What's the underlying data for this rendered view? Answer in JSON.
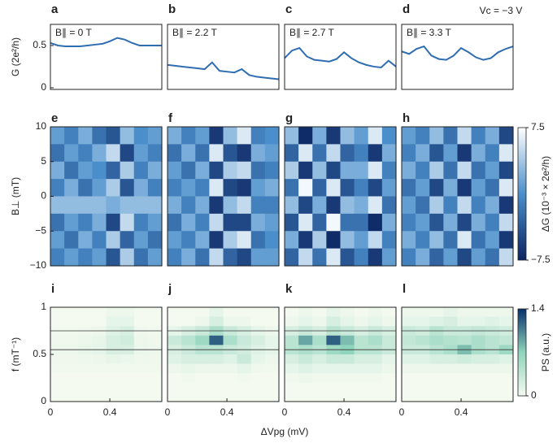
{
  "figure": {
    "x_label": "ΔVpg (mV)",
    "annotation": "Vc = −3 V"
  },
  "chart_data": [
    {
      "type": "line",
      "panel_label": "a",
      "annotation": "B∥ = 0 T",
      "y_label": "G (2e²/h)",
      "color": "#2f6db3",
      "x": [
        0,
        0.05,
        0.1,
        0.15,
        0.2,
        0.25,
        0.3,
        0.35,
        0.4,
        0.45,
        0.5,
        0.55,
        0.6,
        0.65,
        0.7,
        0.75
      ],
      "values": [
        0.53,
        0.5,
        0.49,
        0.49,
        0.49,
        0.5,
        0.51,
        0.52,
        0.55,
        0.59,
        0.57,
        0.53,
        0.5,
        0.5,
        0.5,
        0.5
      ],
      "xlim": [
        0,
        0.75
      ],
      "ylim": [
        -0.02,
        0.75
      ],
      "yticks": [
        0,
        0.5
      ]
    },
    {
      "type": "line",
      "panel_label": "b",
      "annotation": "B∥ = 2.2 T",
      "color": "#2f6db3",
      "x": [
        0,
        0.05,
        0.1,
        0.15,
        0.2,
        0.25,
        0.3,
        0.35,
        0.4,
        0.45,
        0.5,
        0.55,
        0.6,
        0.65,
        0.7,
        0.75
      ],
      "values": [
        0.27,
        0.26,
        0.25,
        0.24,
        0.23,
        0.22,
        0.3,
        0.2,
        0.19,
        0.18,
        0.22,
        0.15,
        0.13,
        0.12,
        0.11,
        0.1
      ],
      "xlim": [
        0,
        0.75
      ],
      "ylim": [
        -0.02,
        0.75
      ]
    },
    {
      "type": "line",
      "panel_label": "c",
      "annotation": "B∥ = 2.7 T",
      "color": "#2f6db3",
      "x": [
        0,
        0.05,
        0.1,
        0.15,
        0.2,
        0.25,
        0.3,
        0.35,
        0.4,
        0.45,
        0.5,
        0.55,
        0.6,
        0.65,
        0.7,
        0.75
      ],
      "values": [
        0.35,
        0.44,
        0.47,
        0.37,
        0.33,
        0.32,
        0.31,
        0.34,
        0.42,
        0.35,
        0.3,
        0.27,
        0.25,
        0.24,
        0.32,
        0.25
      ],
      "xlim": [
        0,
        0.75
      ],
      "ylim": [
        -0.02,
        0.75
      ]
    },
    {
      "type": "line",
      "panel_label": "d",
      "annotation": "B∥ = 3.3 T",
      "color": "#2f6db3",
      "x": [
        0,
        0.05,
        0.1,
        0.15,
        0.2,
        0.25,
        0.3,
        0.35,
        0.4,
        0.45,
        0.5,
        0.55,
        0.6,
        0.65,
        0.7,
        0.75
      ],
      "values": [
        0.43,
        0.4,
        0.46,
        0.49,
        0.38,
        0.34,
        0.33,
        0.38,
        0.47,
        0.42,
        0.36,
        0.33,
        0.35,
        0.42,
        0.46,
        0.49
      ],
      "xlim": [
        0,
        0.75
      ],
      "ylim": [
        -0.02,
        0.75
      ]
    },
    {
      "type": "heatmap",
      "panel_label": "e",
      "y_label": "B⊥ (mT)",
      "xlim": [
        0,
        0.75
      ],
      "ylim": [
        -10,
        10
      ],
      "yticks": [
        10,
        5,
        0,
        {
          "value": -5,
          "label": "−5"
        },
        {
          "value": -10,
          "label": "−10"
        }
      ],
      "z": [
        [
          1,
          -1,
          2,
          -2,
          -4,
          3,
          0,
          1
        ],
        [
          -2,
          1,
          -1,
          2,
          5,
          -5,
          1,
          -1
        ],
        [
          2,
          -2,
          1,
          0,
          -3,
          4,
          -1,
          2
        ],
        [
          -1,
          2,
          -2,
          1,
          4,
          -4,
          2,
          -1
        ],
        [
          3,
          3,
          3,
          3,
          2,
          3,
          3,
          3
        ],
        [
          -2,
          1,
          -1,
          2,
          -5,
          5,
          -1,
          1
        ],
        [
          1,
          -2,
          2,
          -1,
          4,
          -3,
          1,
          -2
        ],
        [
          -1,
          1,
          -1,
          1,
          -4,
          4,
          -2,
          1
        ]
      ]
    },
    {
      "type": "heatmap",
      "panel_label": "f",
      "xlim": [
        0,
        0.75
      ],
      "ylim": [
        -10,
        10
      ],
      "z": [
        [
          2,
          -1,
          1,
          -6,
          3,
          6,
          -1,
          0
        ],
        [
          -2,
          2,
          -2,
          6,
          -4,
          -6,
          2,
          1
        ],
        [
          1,
          -2,
          2,
          -5,
          4,
          5,
          -2,
          -1
        ],
        [
          -1,
          1,
          -1,
          6,
          -5,
          -6,
          1,
          2
        ],
        [
          2,
          -1,
          2,
          -6,
          3,
          5,
          -1,
          -1
        ],
        [
          -2,
          2,
          -1,
          5,
          -5,
          -5,
          2,
          1
        ],
        [
          1,
          -1,
          2,
          -6,
          4,
          6,
          -2,
          0
        ],
        [
          -1,
          2,
          -2,
          5,
          -3,
          -5,
          1,
          1
        ]
      ]
    },
    {
      "type": "heatmap",
      "panel_label": "g",
      "xlim": [
        0,
        0.75
      ],
      "ylim": [
        -10,
        10
      ],
      "z": [
        [
          3,
          -7,
          2,
          -6,
          3,
          1,
          6,
          0
        ],
        [
          -3,
          6,
          -2,
          5,
          -3,
          -1,
          -6,
          2
        ],
        [
          4,
          -6,
          3,
          -5,
          2,
          2,
          6,
          -1
        ],
        [
          -2,
          7,
          -3,
          6,
          -4,
          -1,
          -5,
          1
        ],
        [
          3,
          -5,
          2,
          -6,
          3,
          2,
          6,
          -2
        ],
        [
          -4,
          6,
          -3,
          7,
          -2,
          -2,
          -7,
          2
        ],
        [
          2,
          -6,
          4,
          -7,
          3,
          1,
          5,
          -1
        ],
        [
          -3,
          5,
          -2,
          6,
          -4,
          -1,
          -6,
          1
        ]
      ]
    },
    {
      "type": "heatmap",
      "panel_label": "h",
      "xlim": [
        0,
        0.75
      ],
      "ylim": [
        -10,
        10
      ],
      "colorbar": {
        "label": "ΔG (10⁻³ × 2e²/h)",
        "lim": [
          -7.5,
          7.5
        ],
        "ticks": [
          7.5,
          {
            "value": -7.5,
            "label": "−7.5"
          }
        ],
        "colors": [
          "#0b2461",
          "#4a8fcb",
          "#ffffff"
        ]
      },
      "z": [
        [
          1,
          -1,
          3,
          -2,
          5,
          -1,
          2,
          -5
        ],
        [
          -1,
          2,
          -4,
          1,
          -6,
          2,
          -1,
          6
        ],
        [
          2,
          -1,
          4,
          -2,
          5,
          -2,
          1,
          -5
        ],
        [
          -2,
          1,
          -5,
          2,
          -6,
          1,
          -2,
          6
        ],
        [
          1,
          -2,
          4,
          -1,
          5,
          -1,
          2,
          -6
        ],
        [
          -1,
          1,
          -4,
          2,
          -5,
          2,
          -1,
          5
        ],
        [
          2,
          -1,
          3,
          -2,
          6,
          -2,
          1,
          -6
        ],
        [
          -1,
          2,
          -3,
          1,
          -5,
          1,
          -2,
          5
        ]
      ]
    },
    {
      "type": "heatmap",
      "panel_label": "i",
      "y_label": "f (mT⁻¹)",
      "x_label_row": true,
      "xlim": [
        0,
        0.75
      ],
      "ylim": [
        0,
        1
      ],
      "xticks": [
        0,
        0.4
      ],
      "yticks": [
        0,
        0.5,
        1
      ],
      "hlines": [
        0.55,
        0.75
      ],
      "z": [
        [
          0,
          0,
          0,
          0,
          0.05,
          0.05,
          0,
          0
        ],
        [
          0,
          0,
          0,
          0,
          0.1,
          0.1,
          0,
          0
        ],
        [
          0.02,
          0.02,
          0.03,
          0.05,
          0.15,
          0.2,
          0.03,
          0.02
        ],
        [
          0.03,
          0.03,
          0.05,
          0.08,
          0.2,
          0.25,
          0.05,
          0.03
        ],
        [
          0.05,
          0.05,
          0.08,
          0.1,
          0.2,
          0.2,
          0.06,
          0.05
        ],
        [
          0.03,
          0.03,
          0.04,
          0.05,
          0.08,
          0.06,
          0.04,
          0.03
        ],
        [
          0.02,
          0.02,
          0.02,
          0.02,
          0.02,
          0.02,
          0.02,
          0.02
        ],
        [
          0,
          0,
          0,
          0,
          0,
          0,
          0,
          0
        ],
        [
          0,
          0,
          0,
          0,
          0,
          0,
          0,
          0
        ],
        [
          0,
          0,
          0,
          0,
          0,
          0,
          0,
          0
        ]
      ]
    },
    {
      "type": "heatmap",
      "panel_label": "j",
      "xlim": [
        0,
        0.75
      ],
      "ylim": [
        0,
        1
      ],
      "xticks": [
        0,
        0.4
      ],
      "hlines": [
        0.55,
        0.75
      ],
      "z": [
        [
          0,
          0,
          0,
          0.1,
          0,
          0,
          0,
          0
        ],
        [
          0,
          0,
          0.05,
          0.2,
          0.05,
          0.05,
          0,
          0
        ],
        [
          0.1,
          0.2,
          0.3,
          0.5,
          0.3,
          0.2,
          0.1,
          0.05
        ],
        [
          0.3,
          0.4,
          0.6,
          1.2,
          0.5,
          0.3,
          0.2,
          0.1
        ],
        [
          0.2,
          0.3,
          0.4,
          0.4,
          0.3,
          0.25,
          0.15,
          0.1
        ],
        [
          0.15,
          0.2,
          0.2,
          0.2,
          0.15,
          0.3,
          0.1,
          0.05
        ],
        [
          0.05,
          0.08,
          0.05,
          0.05,
          0.05,
          0.1,
          0.03,
          0.02
        ],
        [
          0,
          0.02,
          0,
          0,
          0,
          0.02,
          0,
          0
        ],
        [
          0,
          0,
          0,
          0,
          0,
          0,
          0,
          0
        ],
        [
          0,
          0,
          0,
          0,
          0,
          0,
          0,
          0
        ]
      ]
    },
    {
      "type": "heatmap",
      "panel_label": "k",
      "xlim": [
        0,
        0.75
      ],
      "ylim": [
        0,
        1
      ],
      "xticks": [
        0,
        0.4
      ],
      "hlines": [
        0.55,
        0.75
      ],
      "z": [
        [
          0,
          0.05,
          0,
          0.1,
          0.05,
          0,
          0.05,
          0
        ],
        [
          0.05,
          0.1,
          0.05,
          0.2,
          0.1,
          0.05,
          0.1,
          0.05
        ],
        [
          0.2,
          0.3,
          0.2,
          0.4,
          0.3,
          0.2,
          0.3,
          0.2
        ],
        [
          0.4,
          0.9,
          0.5,
          1.2,
          0.8,
          0.4,
          0.5,
          0.3
        ],
        [
          0.4,
          0.5,
          0.4,
          0.6,
          0.7,
          0.4,
          0.4,
          0.3
        ],
        [
          0.2,
          0.3,
          0.2,
          0.3,
          0.3,
          0.2,
          0.2,
          0.1
        ],
        [
          0.1,
          0.15,
          0.1,
          0.1,
          0.1,
          0.1,
          0.1,
          0.05
        ],
        [
          0.02,
          0.05,
          0.02,
          0.02,
          0.02,
          0.02,
          0.02,
          0
        ],
        [
          0,
          0,
          0,
          0,
          0,
          0,
          0,
          0
        ],
        [
          0,
          0,
          0,
          0,
          0,
          0,
          0,
          0
        ]
      ]
    },
    {
      "type": "heatmap",
      "panel_label": "l",
      "xlim": [
        0,
        0.75
      ],
      "ylim": [
        0,
        1
      ],
      "xticks": [
        0,
        0.4
      ],
      "hlines": [
        0.55,
        0.75
      ],
      "colorbar": {
        "label": "PS (a.u.)",
        "lim": [
          0,
          1.4
        ],
        "ticks": [
          1.4,
          0
        ],
        "colors": [
          "#f4faf0",
          "#8fd4bc",
          "#08306b"
        ]
      },
      "z": [
        [
          0.05,
          0.05,
          0.05,
          0.1,
          0.05,
          0.05,
          0.05,
          0.05
        ],
        [
          0.1,
          0.1,
          0.15,
          0.2,
          0.1,
          0.1,
          0.15,
          0.1
        ],
        [
          0.3,
          0.25,
          0.4,
          0.3,
          0.3,
          0.35,
          0.3,
          0.25
        ],
        [
          0.35,
          0.4,
          0.5,
          0.45,
          0.4,
          0.5,
          0.4,
          0.35
        ],
        [
          0.3,
          0.3,
          0.4,
          0.5,
          0.8,
          0.5,
          0.4,
          0.6
        ],
        [
          0.15,
          0.15,
          0.2,
          0.2,
          0.25,
          0.2,
          0.2,
          0.15
        ],
        [
          0.05,
          0.05,
          0.05,
          0.05,
          0.05,
          0.05,
          0.05,
          0.05
        ],
        [
          0,
          0,
          0,
          0,
          0,
          0,
          0,
          0
        ],
        [
          0,
          0,
          0,
          0,
          0,
          0,
          0,
          0
        ],
        [
          0,
          0,
          0,
          0,
          0,
          0,
          0,
          0
        ]
      ]
    }
  ]
}
